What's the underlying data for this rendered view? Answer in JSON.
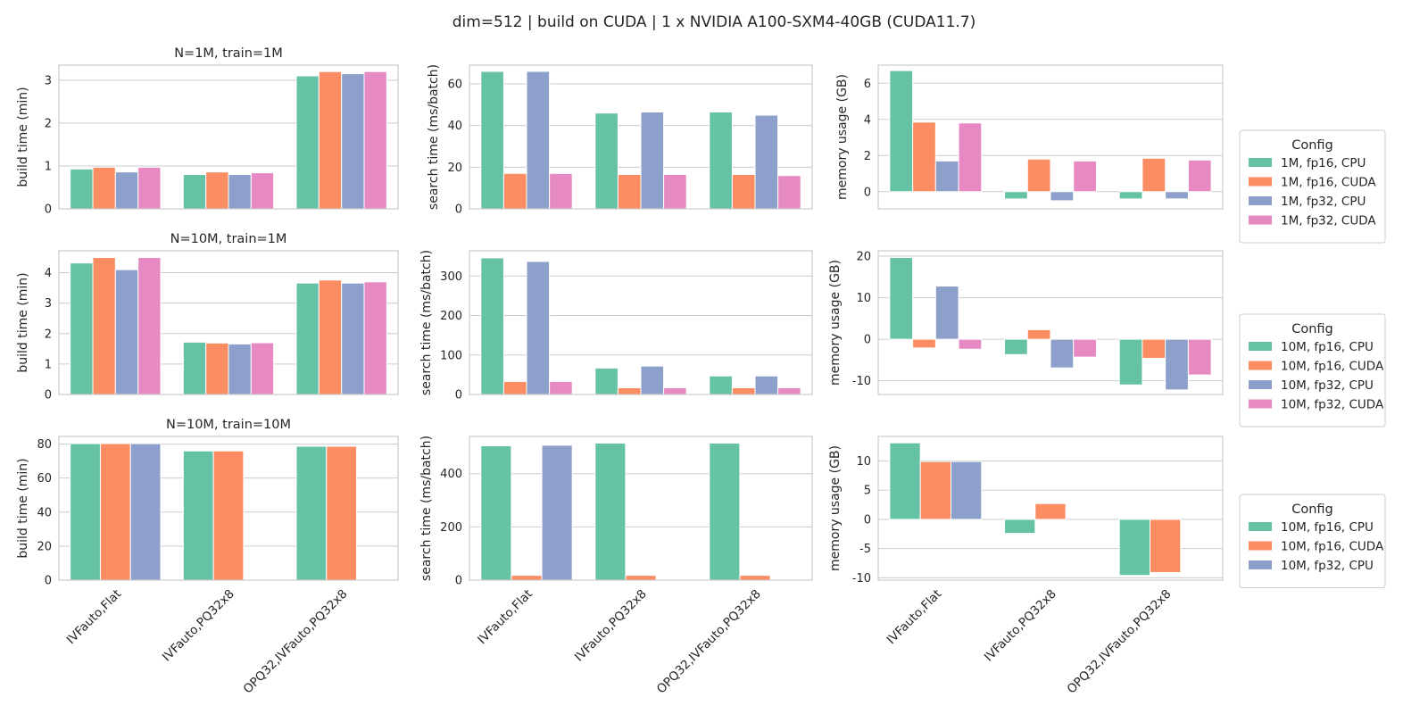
{
  "figure_title": "dim=512 | build on CUDA | 1 x NVIDIA A100-SXM4-40GB (CUDA11.7)",
  "palette": {
    "fp16_cpu": "#66c2a5",
    "fp16_cuda": "#fc8d62",
    "fp32_cpu": "#8da0cb",
    "fp32_cuda": "#e78ac3",
    "grid": "#cccccc",
    "frame": "#cccccc"
  },
  "chart_data": [
    {
      "type": "bar",
      "row": 0,
      "col": 0,
      "title": "N=1M, train=1M",
      "xlabel": "",
      "ylabel": "build time (min)",
      "categories": [
        "IVFauto,Flat",
        "IVFauto,PQ32x8",
        "OPQ32,IVFauto,PQ32x8"
      ],
      "ylim": [
        0,
        3.35
      ],
      "yticks": [
        0,
        1,
        2,
        3
      ],
      "grid": true,
      "series": [
        {
          "name": "1M, fp16, CPU",
          "values": [
            0.93,
            0.8,
            3.1
          ]
        },
        {
          "name": "1M, fp16, CUDA",
          "values": [
            0.97,
            0.86,
            3.2
          ]
        },
        {
          "name": "1M, fp32, CPU",
          "values": [
            0.86,
            0.8,
            3.15
          ]
        },
        {
          "name": "1M, fp32, CUDA",
          "values": [
            0.97,
            0.84,
            3.2
          ]
        }
      ]
    },
    {
      "type": "bar",
      "row": 0,
      "col": 1,
      "title": "",
      "xlabel": "",
      "ylabel": "search time (ms/batch)",
      "categories": [
        "IVFauto,Flat",
        "IVFauto,PQ32x8",
        "OPQ32,IVFauto,PQ32x8"
      ],
      "ylim": [
        0,
        69
      ],
      "yticks": [
        0,
        20,
        40,
        60
      ],
      "grid": true,
      "series": [
        {
          "name": "1M, fp16, CPU",
          "values": [
            66,
            46,
            46.5
          ]
        },
        {
          "name": "1M, fp16, CUDA",
          "values": [
            17,
            16.5,
            16.5
          ]
        },
        {
          "name": "1M, fp32, CPU",
          "values": [
            66,
            46.5,
            45
          ]
        },
        {
          "name": "1M, fp32, CUDA",
          "values": [
            17,
            16.5,
            16
          ]
        }
      ]
    },
    {
      "type": "bar",
      "row": 0,
      "col": 2,
      "title": "",
      "xlabel": "",
      "ylabel": "memory usage (GB)",
      "categories": [
        "IVFauto,Flat",
        "IVFauto,PQ32x8",
        "OPQ32,IVFauto,PQ32x8"
      ],
      "ylim": [
        -0.95,
        7.0
      ],
      "yticks": [
        0,
        2,
        4,
        6
      ],
      "grid": true,
      "series": [
        {
          "name": "1M, fp16, CPU",
          "values": [
            6.7,
            -0.4,
            -0.4
          ]
        },
        {
          "name": "1M, fp16, CUDA",
          "values": [
            3.85,
            1.8,
            1.85
          ]
        },
        {
          "name": "1M, fp32, CPU",
          "values": [
            1.7,
            -0.5,
            -0.4
          ]
        },
        {
          "name": "1M, fp32, CUDA",
          "values": [
            3.8,
            1.7,
            1.75
          ]
        }
      ]
    },
    {
      "type": "bar",
      "row": 1,
      "col": 0,
      "title": "N=10M, train=1M",
      "xlabel": "",
      "ylabel": "build time (min)",
      "categories": [
        "IVFauto,Flat",
        "IVFauto,PQ32x8",
        "OPQ32,IVFauto,PQ32x8"
      ],
      "ylim": [
        0,
        4.72
      ],
      "yticks": [
        0,
        1,
        2,
        3,
        4
      ],
      "grid": true,
      "series": [
        {
          "name": "10M, fp16, CPU",
          "values": [
            4.32,
            1.72,
            3.66
          ]
        },
        {
          "name": "10M, fp16, CUDA",
          "values": [
            4.5,
            1.69,
            3.76
          ]
        },
        {
          "name": "10M, fp32, CPU",
          "values": [
            4.1,
            1.66,
            3.66
          ]
        },
        {
          "name": "10M, fp32, CUDA",
          "values": [
            4.5,
            1.7,
            3.7
          ]
        }
      ]
    },
    {
      "type": "bar",
      "row": 1,
      "col": 1,
      "title": "",
      "xlabel": "",
      "ylabel": "search time (ms/batch)",
      "categories": [
        "IVFauto,Flat",
        "IVFauto,PQ32x8",
        "OPQ32,IVFauto,PQ32x8"
      ],
      "ylim": [
        0,
        364
      ],
      "yticks": [
        0,
        100,
        200,
        300
      ],
      "grid": true,
      "series": [
        {
          "name": "10M, fp16, CPU",
          "values": [
            346,
            67,
            47
          ]
        },
        {
          "name": "10M, fp16, CUDA",
          "values": [
            33,
            17,
            17
          ]
        },
        {
          "name": "10M, fp32, CPU",
          "values": [
            337,
            72,
            47
          ]
        },
        {
          "name": "10M, fp32, CUDA",
          "values": [
            33,
            17,
            17
          ]
        }
      ]
    },
    {
      "type": "bar",
      "row": 1,
      "col": 2,
      "title": "",
      "xlabel": "",
      "ylabel": "memory usage (GB)",
      "categories": [
        "IVFauto,Flat",
        "IVFauto,PQ32x8",
        "OPQ32,IVFauto,PQ32x8"
      ],
      "ylim": [
        -13.3,
        21.3
      ],
      "yticks": [
        -10,
        0,
        10,
        20
      ],
      "grid": true,
      "series": [
        {
          "name": "10M, fp16, CPU",
          "values": [
            19.7,
            -3.7,
            -11.0
          ]
        },
        {
          "name": "10M, fp16, CUDA",
          "values": [
            -2.1,
            2.3,
            -4.6
          ]
        },
        {
          "name": "10M, fp32, CPU",
          "values": [
            12.8,
            -6.9,
            -12.2
          ]
        },
        {
          "name": "10M, fp32, CUDA",
          "values": [
            -2.4,
            -4.3,
            -8.6
          ]
        }
      ]
    },
    {
      "type": "bar",
      "row": 2,
      "col": 0,
      "title": "N=10M, train=10M",
      "xlabel": "",
      "ylabel": "build time (min)",
      "categories": [
        "IVFauto,Flat",
        "IVFauto,PQ32x8",
        "OPQ32,IVFauto,PQ32x8"
      ],
      "ylim": [
        0,
        84.5
      ],
      "yticks": [
        0,
        20,
        40,
        60,
        80
      ],
      "grid": true,
      "series": [
        {
          "name": "10M, fp16, CPU",
          "values": [
            80.3,
            76.0,
            78.7
          ]
        },
        {
          "name": "10M, fp16, CUDA",
          "values": [
            80.3,
            76.0,
            78.7
          ]
        },
        {
          "name": "10M, fp32, CPU",
          "values": [
            80.3,
            null,
            null
          ]
        }
      ]
    },
    {
      "type": "bar",
      "row": 2,
      "col": 1,
      "title": "",
      "xlabel": "",
      "ylabel": "search time (ms/batch)",
      "categories": [
        "IVFauto,Flat",
        "IVFauto,PQ32x8",
        "OPQ32,IVFauto,PQ32x8"
      ],
      "ylim": [
        0,
        540
      ],
      "yticks": [
        0,
        200,
        400
      ],
      "grid": true,
      "series": [
        {
          "name": "10M, fp16, CPU",
          "values": [
            505,
            515,
            515
          ]
        },
        {
          "name": "10M, fp16, CUDA",
          "values": [
            18,
            18,
            18
          ]
        },
        {
          "name": "10M, fp32, CPU",
          "values": [
            507,
            null,
            null
          ]
        }
      ]
    },
    {
      "type": "bar",
      "row": 2,
      "col": 2,
      "title": "",
      "xlabel": "",
      "ylabel": "memory usage (GB)",
      "categories": [
        "IVFauto,Flat",
        "IVFauto,PQ32x8",
        "OPQ32,IVFauto,PQ32x8"
      ],
      "ylim": [
        -10.4,
        14.2
      ],
      "yticks": [
        -10,
        -5,
        0,
        5,
        10
      ],
      "grid": true,
      "series": [
        {
          "name": "10M, fp16, CPU",
          "values": [
            13.1,
            -2.4,
            -9.6
          ]
        },
        {
          "name": "10M, fp16, CUDA",
          "values": [
            9.9,
            2.7,
            -9.1
          ]
        },
        {
          "name": "10M, fp32, CPU",
          "values": [
            9.9,
            null,
            null
          ]
        }
      ]
    }
  ],
  "legends": [
    {
      "row": 0,
      "placement": "right",
      "title": "Config",
      "entries": [
        {
          "label": "1M, fp16, CPU",
          "color": "#66c2a5"
        },
        {
          "label": "1M, fp16, CUDA",
          "color": "#fc8d62"
        },
        {
          "label": "1M, fp32, CPU",
          "color": "#8da0cb"
        },
        {
          "label": "1M, fp32, CUDA",
          "color": "#e78ac3"
        }
      ]
    },
    {
      "row": 1,
      "placement": "right",
      "title": "Config",
      "entries": [
        {
          "label": "10M, fp16, CPU",
          "color": "#66c2a5"
        },
        {
          "label": "10M, fp16, CUDA",
          "color": "#fc8d62"
        },
        {
          "label": "10M, fp32, CPU",
          "color": "#8da0cb"
        },
        {
          "label": "10M, fp32, CUDA",
          "color": "#e78ac3"
        }
      ]
    },
    {
      "row": 2,
      "placement": "right",
      "title": "Config",
      "entries": [
        {
          "label": "10M, fp16, CPU",
          "color": "#66c2a5"
        },
        {
          "label": "10M, fp16, CUDA",
          "color": "#fc8d62"
        },
        {
          "label": "10M, fp32, CPU",
          "color": "#8da0cb"
        }
      ]
    }
  ]
}
